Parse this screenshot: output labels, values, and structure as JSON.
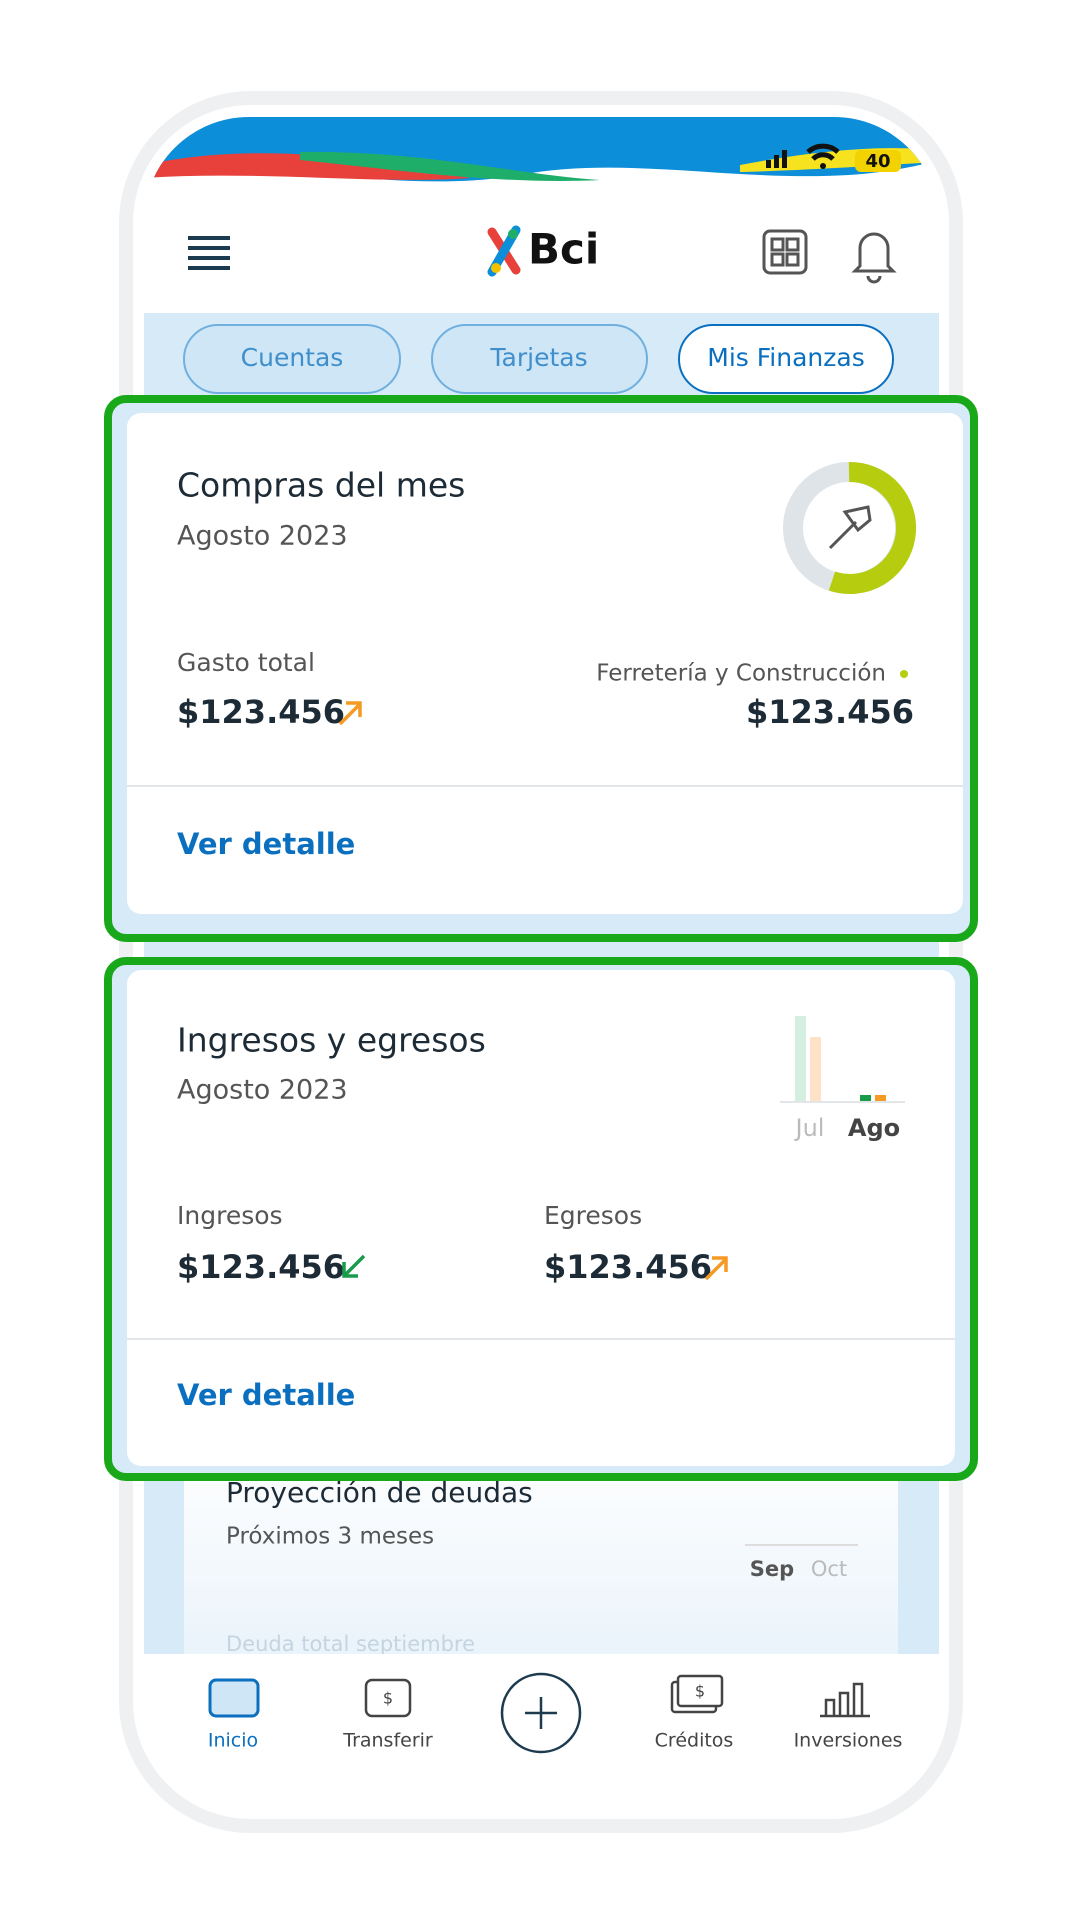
{
  "status_bar": {
    "battery": "40"
  },
  "header": {
    "logo": "Bci"
  },
  "tabs": [
    "Cuentas",
    "Tarjetas",
    "Mis Finanzas"
  ],
  "cards": [
    {
      "title": "Compras del mes",
      "subtitle": "Agosto 2023",
      "left_label": "Gasto total",
      "left_amount": "$123.456",
      "right_label": "Ferretería y Construcción",
      "right_amount": "$123.456",
      "link": "Ver detalle"
    },
    {
      "title": "Ingresos y egresos",
      "subtitle": "Agosto 2023",
      "months": [
        "Jul",
        "Ago"
      ],
      "left_label": "Ingresos",
      "left_amount": "$123.456",
      "right_label": "Egresos",
      "right_amount": "$123.456",
      "link": "Ver detalle"
    },
    {
      "title": "Proyección de deudas",
      "subtitle": "Próximos 3 meses",
      "months": [
        "Sep",
        "Oct"
      ],
      "label": "Deuda total septiembre"
    }
  ],
  "nav": [
    "Inicio",
    "Transferir",
    "Créditos",
    "Inversiones"
  ]
}
